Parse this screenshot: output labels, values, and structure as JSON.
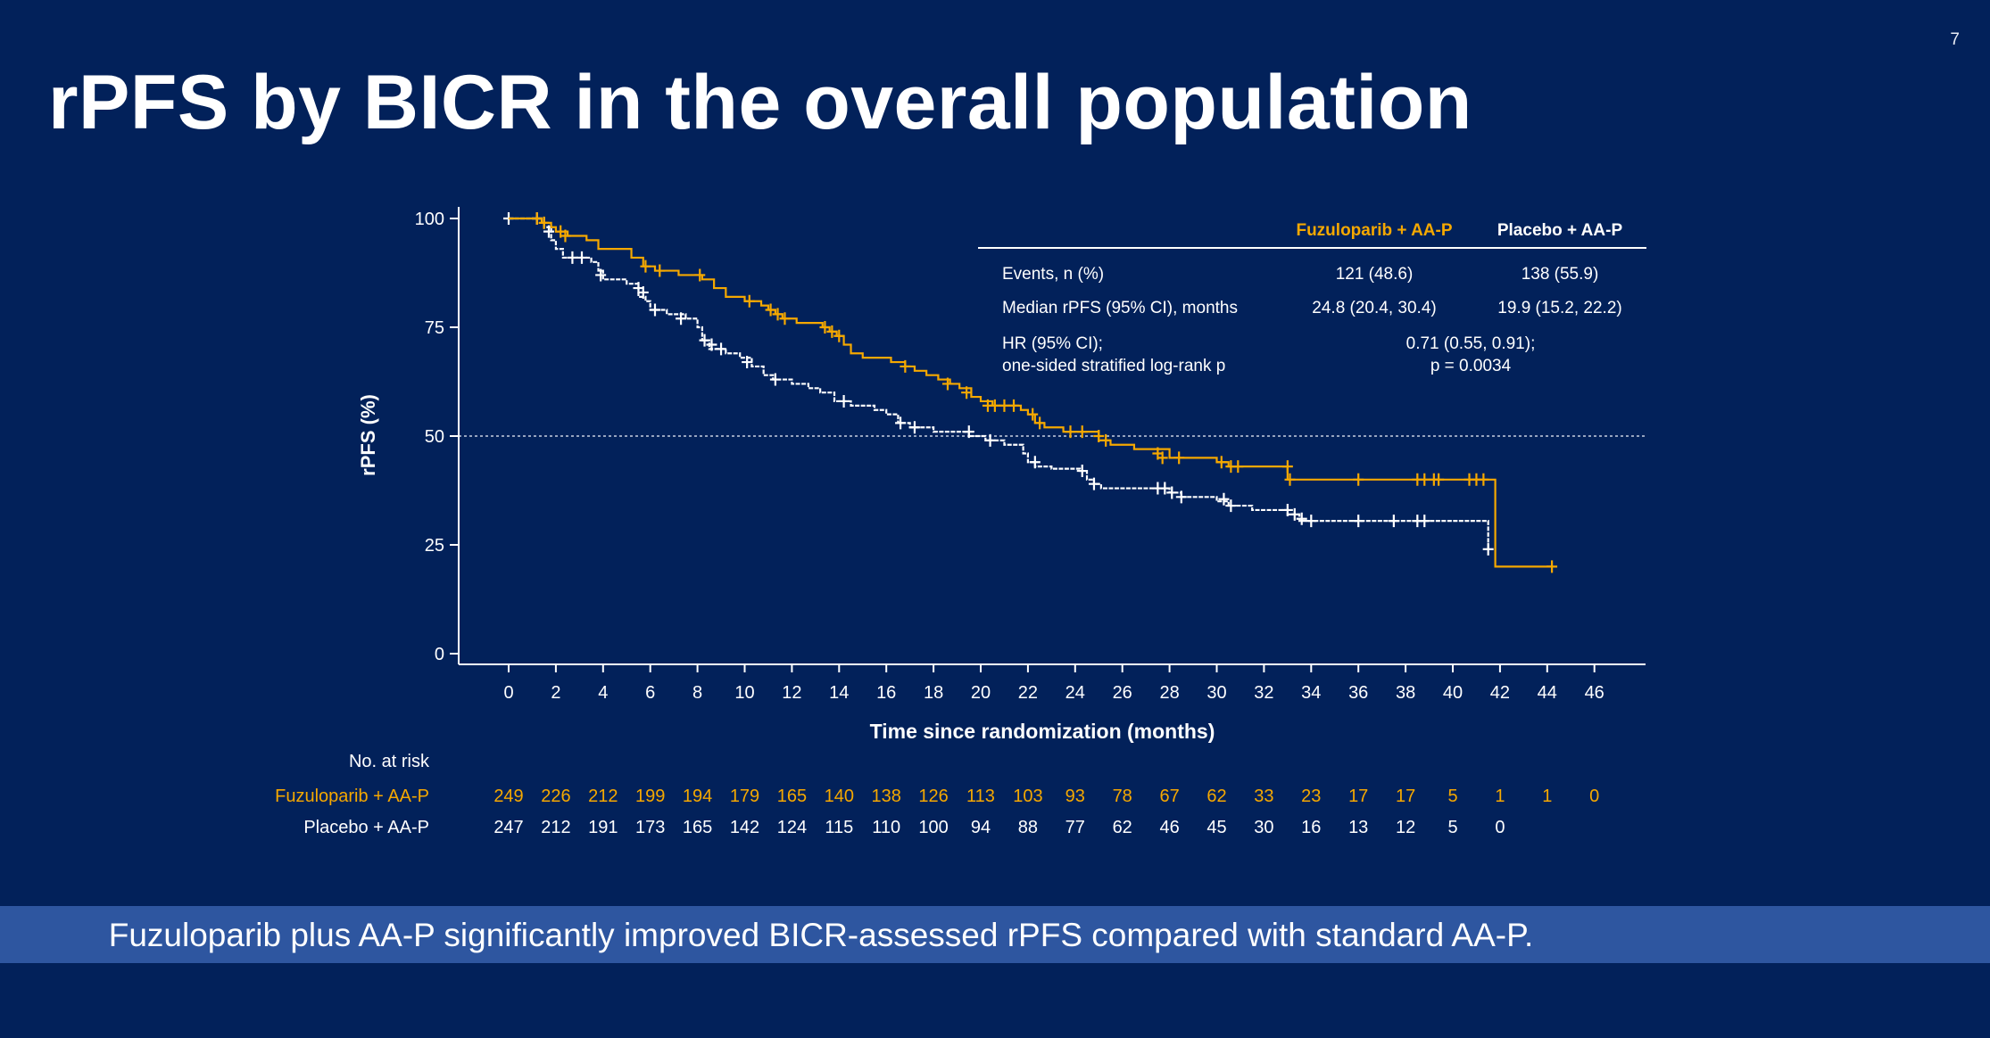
{
  "slide": {
    "number": "7",
    "title": "rPFS by BICR in the overall population",
    "conclusion": "Fuzuloparib plus AA-P significantly improved BICR-assessed rPFS compared with standard AA-P."
  },
  "colors": {
    "background": "#02215a",
    "fuzuloparib": "#f5a800",
    "placebo": "#ffffff",
    "band": "#2e56a0"
  },
  "chart_data": {
    "type": "line",
    "subtype": "kaplan-meier",
    "xlabel": "Time since randomization (months)",
    "ylabel": "rPFS (%)",
    "xlim": [
      0,
      48
    ],
    "ylim": [
      0,
      100
    ],
    "xticks": [
      "0",
      "2",
      "4",
      "6",
      "8",
      "10",
      "12",
      "14",
      "16",
      "18",
      "20",
      "22",
      "24",
      "26",
      "28",
      "30",
      "32",
      "34",
      "36",
      "38",
      "40",
      "42",
      "44",
      "46"
    ],
    "yticks": [
      "0",
      "25",
      "50",
      "75",
      "100"
    ],
    "reference_line_y": 50,
    "series": [
      {
        "name": "Fuzuloparib + AA-P",
        "color": "#f5a800",
        "steps": [
          [
            0,
            100
          ],
          [
            1.4,
            99
          ],
          [
            1.8,
            98
          ],
          [
            2,
            97
          ],
          [
            2.5,
            96
          ],
          [
            3.3,
            95
          ],
          [
            3.8,
            93
          ],
          [
            5.2,
            91
          ],
          [
            5.7,
            89
          ],
          [
            6.2,
            88
          ],
          [
            7.2,
            87
          ],
          [
            8.2,
            86
          ],
          [
            8.7,
            84
          ],
          [
            9.2,
            82
          ],
          [
            10,
            81
          ],
          [
            10.7,
            80
          ],
          [
            11,
            79
          ],
          [
            11.3,
            78
          ],
          [
            11.6,
            77
          ],
          [
            12.2,
            76
          ],
          [
            13.3,
            75
          ],
          [
            13.6,
            74
          ],
          [
            13.9,
            73
          ],
          [
            14.2,
            71
          ],
          [
            14.5,
            69
          ],
          [
            15,
            68
          ],
          [
            16.2,
            67
          ],
          [
            16.8,
            66
          ],
          [
            17.2,
            65
          ],
          [
            17.7,
            64
          ],
          [
            18.2,
            63
          ],
          [
            18.7,
            62
          ],
          [
            19.1,
            61
          ],
          [
            19.6,
            59
          ],
          [
            20,
            58
          ],
          [
            20.5,
            57
          ],
          [
            21.7,
            56
          ],
          [
            22,
            55
          ],
          [
            22.3,
            53
          ],
          [
            22.7,
            52
          ],
          [
            23.5,
            51
          ],
          [
            25,
            49
          ],
          [
            25.5,
            48
          ],
          [
            26.5,
            47
          ],
          [
            28,
            45
          ],
          [
            30,
            44
          ],
          [
            30.5,
            43
          ],
          [
            33,
            40
          ],
          [
            41.8,
            40
          ],
          [
            41.8,
            20
          ],
          [
            44.2,
            20
          ]
        ],
        "censor": [
          [
            1.2,
            100
          ],
          [
            1.5,
            99
          ],
          [
            2.2,
            97
          ],
          [
            2.4,
            96
          ],
          [
            5.8,
            89
          ],
          [
            6.4,
            88
          ],
          [
            8.1,
            87
          ],
          [
            10.2,
            81
          ],
          [
            11.1,
            79
          ],
          [
            11.4,
            78
          ],
          [
            11.7,
            77
          ],
          [
            13.4,
            75
          ],
          [
            13.7,
            74
          ],
          [
            14,
            73
          ],
          [
            16.8,
            66
          ],
          [
            18.6,
            62
          ],
          [
            19.4,
            60
          ],
          [
            20.3,
            57
          ],
          [
            20.6,
            57
          ],
          [
            21,
            57
          ],
          [
            21.4,
            57
          ],
          [
            22.2,
            55
          ],
          [
            22.5,
            53
          ],
          [
            23.8,
            51
          ],
          [
            24.3,
            51
          ],
          [
            25,
            50
          ],
          [
            25.3,
            49
          ],
          [
            27.5,
            46
          ],
          [
            27.7,
            45
          ],
          [
            28.4,
            45
          ],
          [
            30.2,
            44
          ],
          [
            30.6,
            43
          ],
          [
            30.9,
            43
          ],
          [
            33,
            43
          ],
          [
            33.1,
            40
          ],
          [
            36,
            40
          ],
          [
            38.5,
            40
          ],
          [
            38.8,
            40
          ],
          [
            39.2,
            40
          ],
          [
            39.4,
            40
          ],
          [
            40.7,
            40
          ],
          [
            41,
            40
          ],
          [
            41.3,
            40
          ],
          [
            44.2,
            20
          ]
        ]
      },
      {
        "name": "Placebo + AA-P",
        "color": "#ffffff",
        "steps": [
          [
            0,
            100
          ],
          [
            1.5,
            98
          ],
          [
            1.8,
            95
          ],
          [
            2,
            93
          ],
          [
            2.3,
            91
          ],
          [
            3.5,
            90
          ],
          [
            3.8,
            88
          ],
          [
            4,
            86
          ],
          [
            5,
            85
          ],
          [
            5.5,
            82
          ],
          [
            5.8,
            81
          ],
          [
            6,
            79
          ],
          [
            6.7,
            78
          ],
          [
            7.5,
            77
          ],
          [
            8,
            75
          ],
          [
            8.2,
            72
          ],
          [
            8.5,
            70
          ],
          [
            9.2,
            69
          ],
          [
            9.8,
            68
          ],
          [
            10.3,
            66
          ],
          [
            10.8,
            64
          ],
          [
            11.2,
            63
          ],
          [
            12,
            62
          ],
          [
            12.7,
            61
          ],
          [
            13.2,
            60
          ],
          [
            13.8,
            58
          ],
          [
            14.5,
            57
          ],
          [
            15.5,
            56
          ],
          [
            16,
            55
          ],
          [
            16.5,
            53
          ],
          [
            17,
            52
          ],
          [
            18,
            51
          ],
          [
            19.5,
            50
          ],
          [
            20.2,
            49
          ],
          [
            21,
            48
          ],
          [
            21.8,
            46
          ],
          [
            22,
            44
          ],
          [
            22.3,
            43
          ],
          [
            23,
            42.5
          ],
          [
            24.2,
            42
          ],
          [
            24.5,
            40
          ],
          [
            24.8,
            39
          ],
          [
            25.1,
            38
          ],
          [
            28,
            37
          ],
          [
            28.5,
            36
          ],
          [
            30,
            35
          ],
          [
            30.5,
            34
          ],
          [
            31.5,
            33
          ],
          [
            33,
            32
          ],
          [
            33.5,
            30.5
          ],
          [
            34,
            30.5
          ],
          [
            41.5,
            30.5
          ],
          [
            41.5,
            24
          ]
        ],
        "censor": [
          [
            0,
            100
          ],
          [
            1.2,
            100
          ],
          [
            1.7,
            97
          ],
          [
            2.7,
            91
          ],
          [
            3.1,
            91
          ],
          [
            3.9,
            87
          ],
          [
            5.5,
            84
          ],
          [
            5.7,
            83
          ],
          [
            6.2,
            79
          ],
          [
            7.3,
            77
          ],
          [
            8.3,
            72
          ],
          [
            8.6,
            71
          ],
          [
            9,
            70
          ],
          [
            10.1,
            67
          ],
          [
            11.3,
            63
          ],
          [
            14.2,
            58
          ],
          [
            16.6,
            53
          ],
          [
            17.2,
            52
          ],
          [
            19.5,
            51
          ],
          [
            20.4,
            49
          ],
          [
            22.3,
            44
          ],
          [
            24.3,
            42
          ],
          [
            24.8,
            39
          ],
          [
            27.5,
            38
          ],
          [
            27.8,
            38
          ],
          [
            28.1,
            37
          ],
          [
            28.5,
            36
          ],
          [
            30.3,
            35.5
          ],
          [
            30.6,
            34
          ],
          [
            33,
            33
          ],
          [
            33.3,
            32
          ],
          [
            33.6,
            31
          ],
          [
            34,
            30.5
          ],
          [
            36,
            30.5
          ],
          [
            37.5,
            30.5
          ],
          [
            38.5,
            30.5
          ],
          [
            38.8,
            30.5
          ],
          [
            41.5,
            24
          ]
        ]
      }
    ],
    "stats_table": {
      "headers": [
        "",
        "Fuzuloparib + AA-P",
        "Placebo + AA-P"
      ],
      "rows": [
        {
          "label": "Events, n (%)",
          "fuz": "121 (48.6)",
          "pla": "138 (55.9)"
        },
        {
          "label": "Median rPFS (95% CI), months",
          "fuz": "24.8 (20.4, 30.4)",
          "pla": "19.9 (15.2, 22.2)"
        }
      ],
      "hr_label_1": "HR (95% CI);",
      "hr_label_2": "one-sided stratified log-rank p",
      "hr_value_1": "0.71 (0.55, 0.91);",
      "hr_value_2": "p = 0.0034"
    },
    "risk_table": {
      "title": "No. at risk",
      "rows": [
        {
          "label": "Fuzuloparib + AA-P",
          "color": "#f5a800",
          "values": [
            "249",
            "226",
            "212",
            "199",
            "194",
            "179",
            "165",
            "140",
            "138",
            "126",
            "113",
            "103",
            "93",
            "78",
            "67",
            "62",
            "33",
            "23",
            "17",
            "17",
            "5",
            "1",
            "1",
            "0"
          ]
        },
        {
          "label": "Placebo + AA-P",
          "color": "#ffffff",
          "values": [
            "247",
            "212",
            "191",
            "173",
            "165",
            "142",
            "124",
            "115",
            "110",
            "100",
            "94",
            "88",
            "77",
            "62",
            "46",
            "45",
            "30",
            "16",
            "13",
            "12",
            "5",
            "0"
          ]
        }
      ]
    }
  }
}
